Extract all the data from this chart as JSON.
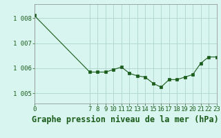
{
  "x": [
    0,
    7,
    8,
    9,
    10,
    11,
    12,
    13,
    14,
    15,
    16,
    17,
    18,
    19,
    20,
    21,
    22,
    23
  ],
  "y": [
    1008.1,
    1005.85,
    1005.85,
    1005.85,
    1005.95,
    1006.05,
    1005.8,
    1005.7,
    1005.65,
    1005.4,
    1005.25,
    1005.55,
    1005.55,
    1005.65,
    1005.75,
    1006.2,
    1006.45,
    1006.45
  ],
  "line_color": "#1a5c1a",
  "marker_color": "#1a5c1a",
  "bg_color": "#d8f5f0",
  "grid_color": "#aed4cc",
  "title": "Graphe pression niveau de la mer (hPa)",
  "ytick_values": [
    1005,
    1006,
    1007,
    1008
  ],
  "ytick_labels": [
    "1 005",
    "1 006",
    "1 007",
    "1 008"
  ],
  "xticks": [
    0,
    7,
    8,
    9,
    10,
    11,
    12,
    13,
    14,
    15,
    16,
    17,
    18,
    19,
    20,
    21,
    22,
    23
  ],
  "ylim": [
    1004.6,
    1008.55
  ],
  "xlim": [
    0,
    23
  ],
  "title_fontsize": 8.5,
  "tick_fontsize": 6.5
}
